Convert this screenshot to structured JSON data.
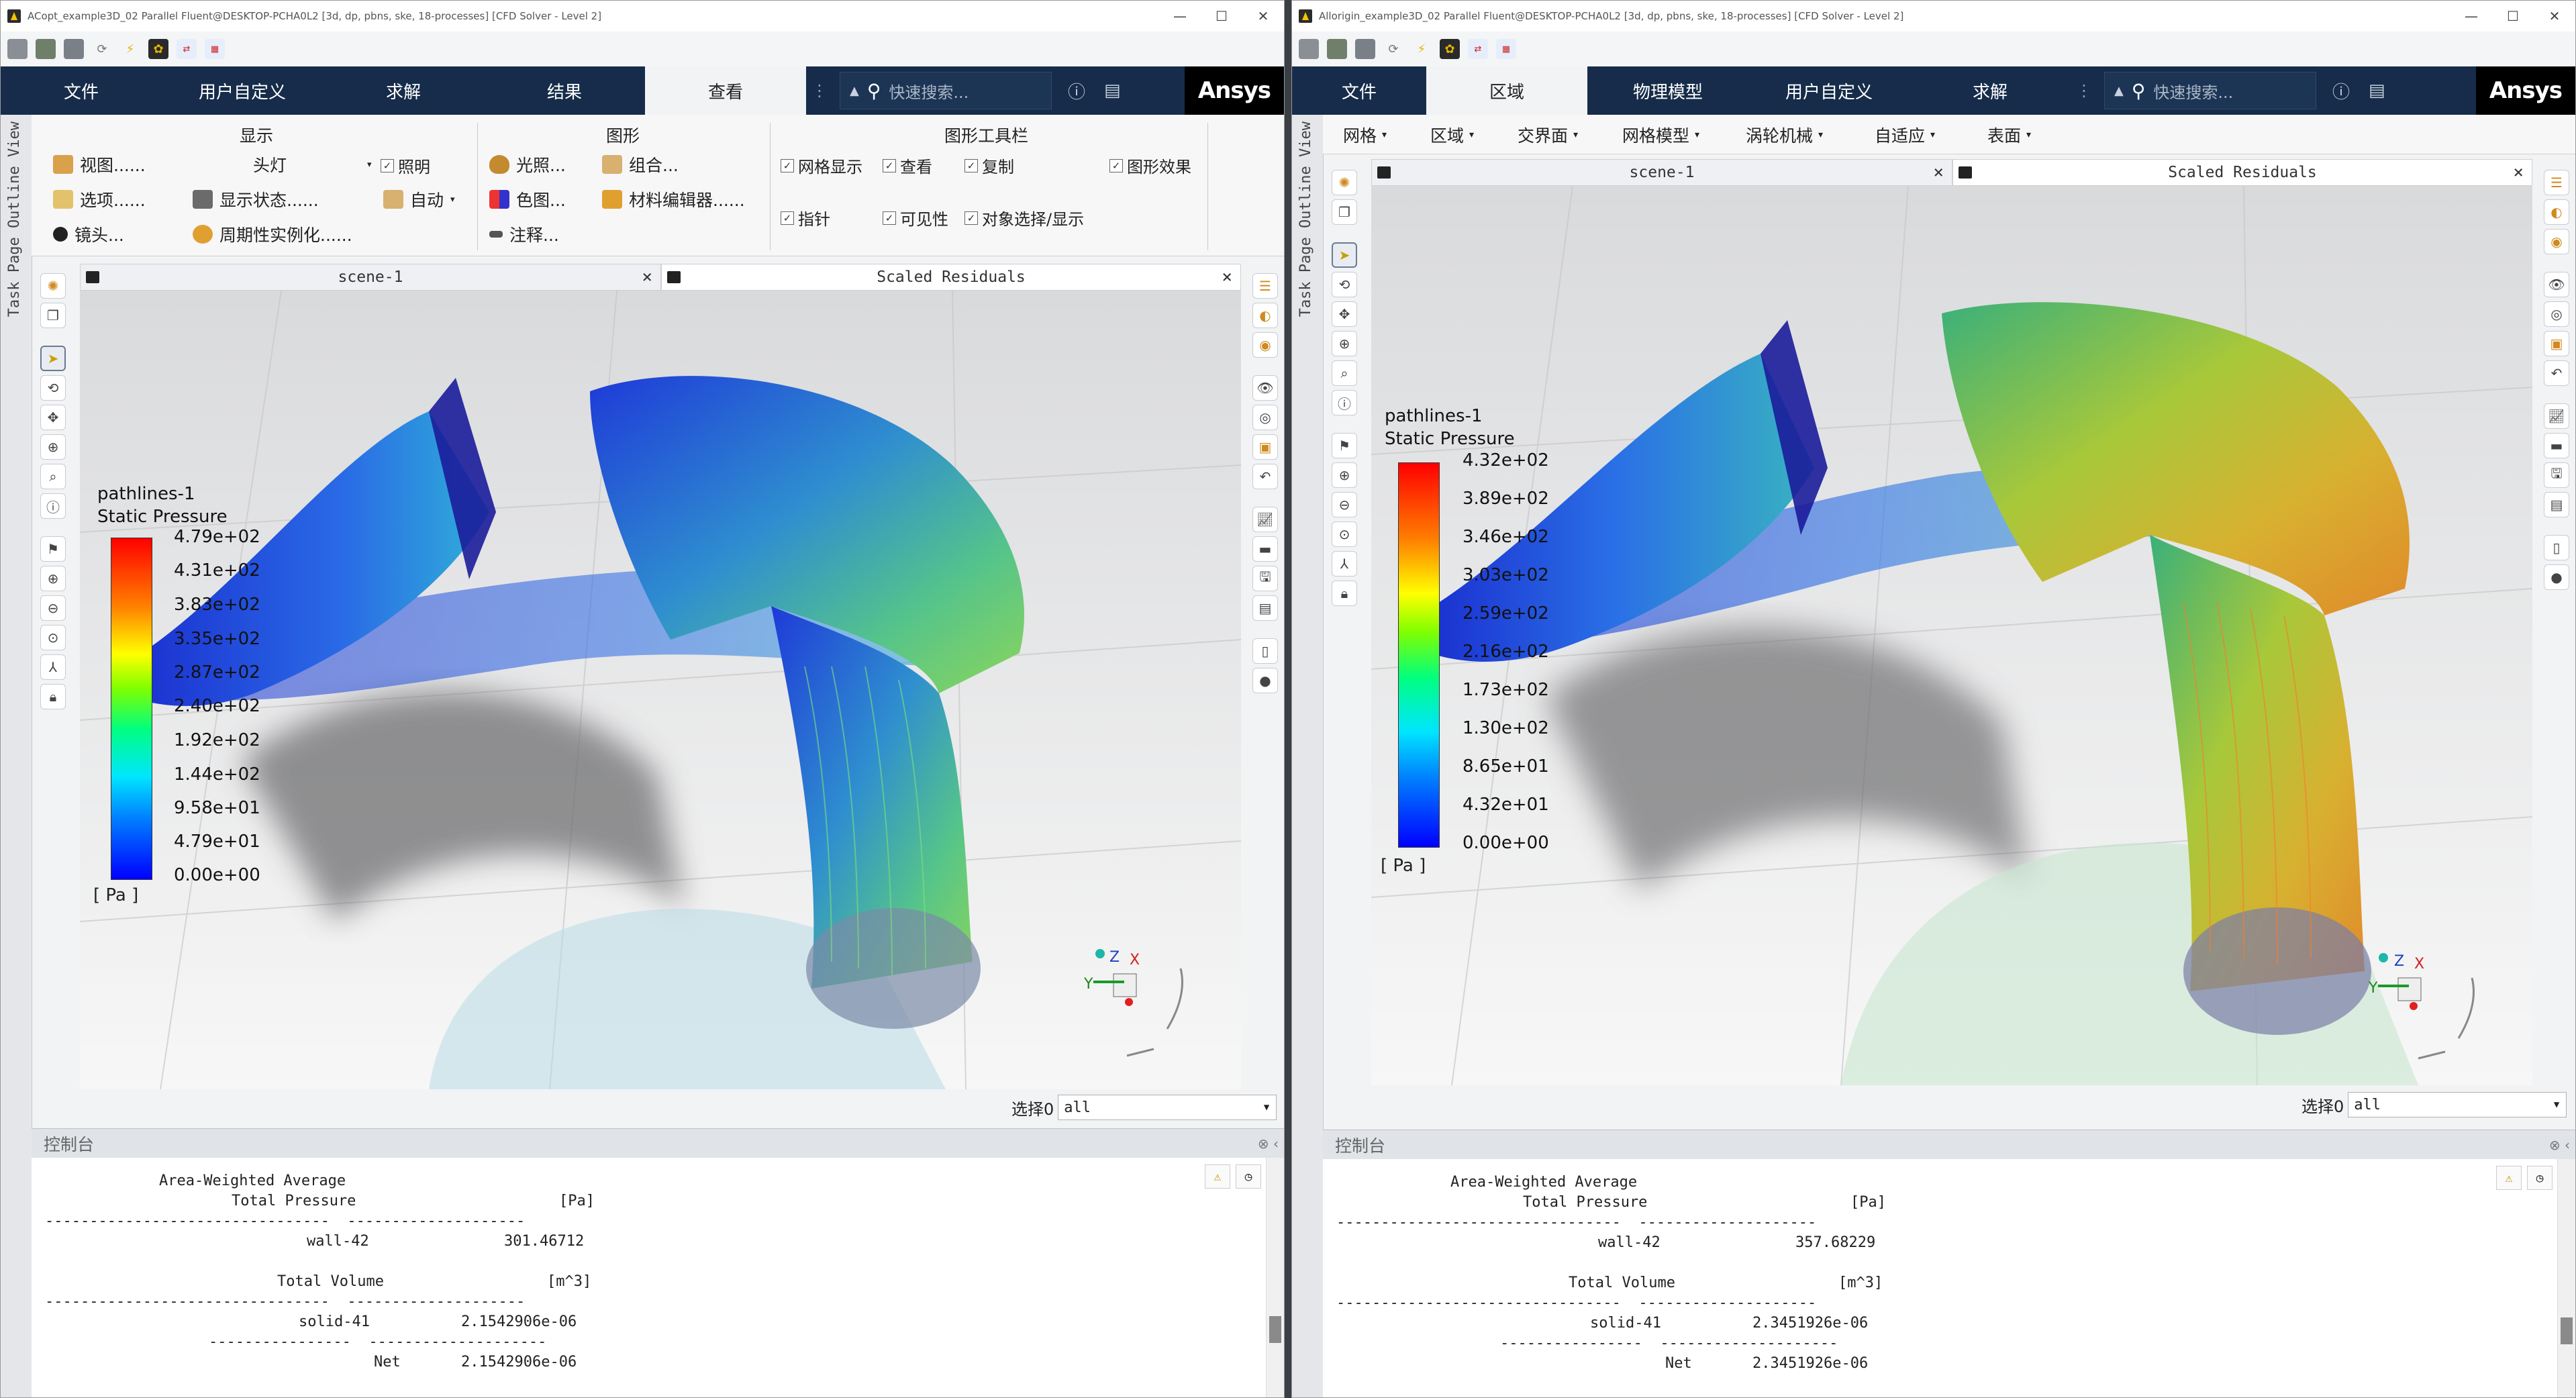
{
  "left": {
    "title": "ACopt_example3D_02 Parallel Fluent@DESKTOP-PCHA0L2 [3d, dp, pbns, ske, 18-processes] [CFD Solver - Level 2]",
    "tabs": [
      "文件",
      "用户自定义",
      "求解",
      "结果",
      "查看"
    ],
    "search_placeholder": "快速搜索...",
    "ribbon": {
      "group_display": "显示",
      "group_graphics": "图形",
      "group_toolbar": "图形工具栏",
      "view": "视图......",
      "options": "选项......",
      "camera": "镜头...",
      "headlight": "头灯",
      "display_state": "显示状态......",
      "periodic": "周期性实例化......",
      "lighting_chk": "照明",
      "auto": "自动",
      "lights": "光照...",
      "colormap": "色图...",
      "annotate": "注释...",
      "composite": "组合...",
      "material_editor": "材料编辑器......",
      "mesh_display": "网格显示",
      "view_chk": "查看",
      "copy": "复制",
      "graphics_effects": "图形效果",
      "pointer": "指针",
      "visibility": "可见性",
      "obj_select": "对象选择/显示"
    },
    "vertical_label": "Task Page Outline View",
    "scene_tab": "scene-1",
    "residual_tab": "Scaled Residuals",
    "legend": {
      "title1": "pathlines-1",
      "title2": "Static Pressure",
      "ticks": [
        "4.79e+02",
        "4.31e+02",
        "3.83e+02",
        "3.35e+02",
        "2.87e+02",
        "2.40e+02",
        "1.92e+02",
        "1.44e+02",
        "9.58e+01",
        "4.79e+01",
        "0.00e+00"
      ],
      "unit": "[ Pa ]"
    },
    "select_label": "选择0",
    "select_value": "all",
    "console_title": "控制台",
    "console": {
      "l1": "Area-Weighted Average",
      "l2": "Total Pressure",
      "u1": "[Pa]",
      "dash1": "--------------------------------  --------------------",
      "r1_name": "wall-42",
      "r1_val": "301.46712",
      "l3": "Total Volume",
      "u2": "[m^3]",
      "dash2": "--------------------------------  --------------------",
      "r2_name": "solid-41",
      "r2_val": "2.1542906e-06",
      "dash3": "----------------  --------------------",
      "r3_name": "Net",
      "r3_val": "2.1542906e-06"
    }
  },
  "right": {
    "title": "Allorigin_example3D_02 Parallel Fluent@DESKTOP-PCHA0L2 [3d, dp, pbns, ske, 18-processes] [CFD Solver - Level 2]",
    "tabs": [
      "文件",
      "区域",
      "物理模型",
      "用户自定义",
      "求解"
    ],
    "search_placeholder": "快速搜索...",
    "menus": [
      "网格",
      "区域",
      "交界面",
      "网格模型",
      "涡轮机械",
      "自适应",
      "表面"
    ],
    "vertical_label": "Task Page Outline View",
    "scene_tab": "scene-1",
    "residual_tab": "Scaled Residuals",
    "legend": {
      "title1": "pathlines-1",
      "title2": "Static Pressure",
      "ticks": [
        "4.32e+02",
        "3.89e+02",
        "3.46e+02",
        "3.03e+02",
        "2.59e+02",
        "2.16e+02",
        "1.73e+02",
        "1.30e+02",
        "8.65e+01",
        "4.32e+01",
        "0.00e+00"
      ],
      "unit": "[ Pa ]"
    },
    "select_label": "选择0",
    "select_value": "all",
    "console_title": "控制台",
    "console": {
      "l1": "Area-Weighted Average",
      "l2": "Total Pressure",
      "u1": "[Pa]",
      "dash1": "--------------------------------  --------------------",
      "r1_name": "wall-42",
      "r1_val": "357.68229",
      "l3": "Total Volume",
      "u2": "[m^3]",
      "dash2": "--------------------------------  --------------------",
      "r2_name": "solid-41",
      "r2_val": "2.3451926e-06",
      "dash3": "----------------  --------------------",
      "r3_name": "Net",
      "r3_val": "2.3451926e-06"
    }
  },
  "brand": "Ansys",
  "colors": {
    "tabbar": "#162c4a",
    "accent_red": "#ff0000",
    "accent_blue": "#0000ff"
  }
}
